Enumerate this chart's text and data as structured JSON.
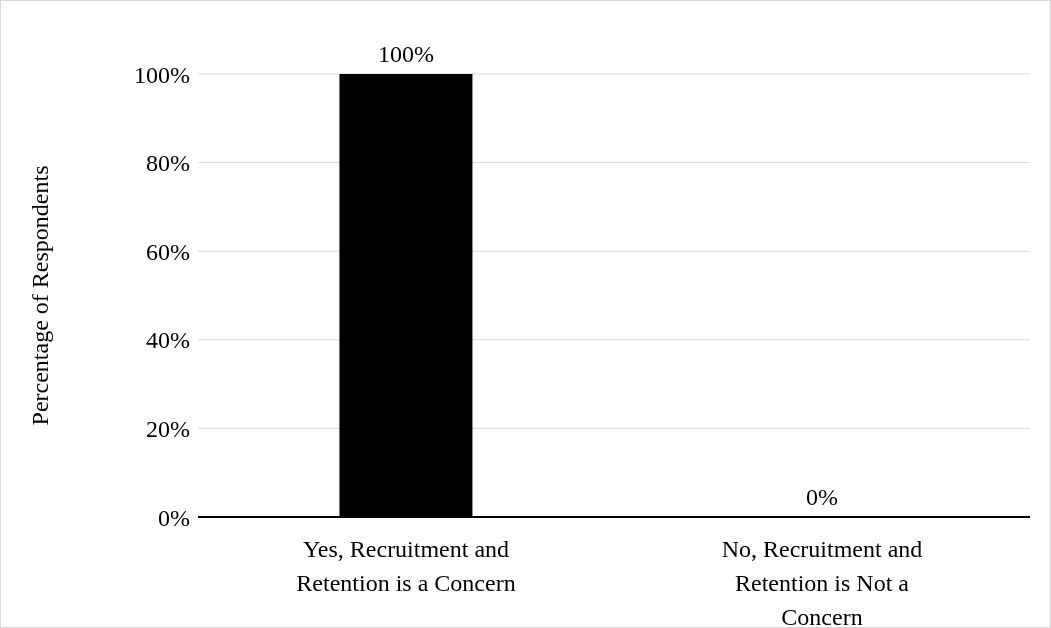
{
  "chart_data": {
    "type": "bar",
    "ylabel": "Percentage of Respondents",
    "categories": [
      "Yes, Recruitment and Retention is a Concern",
      "No, Recruitment and Retention is Not a Concern"
    ],
    "values": [
      100,
      0
    ],
    "value_labels": [
      "100%",
      "0%"
    ],
    "color": "#000000",
    "ylim": [
      0,
      100
    ],
    "yticks": [
      {
        "value": 0,
        "label": "0%"
      },
      {
        "value": 20,
        "label": "20%"
      },
      {
        "value": 40,
        "label": "40%"
      },
      {
        "value": 60,
        "label": "60%"
      },
      {
        "value": 80,
        "label": "80%"
      },
      {
        "value": 100,
        "label": "100%"
      }
    ],
    "grid": "y"
  }
}
